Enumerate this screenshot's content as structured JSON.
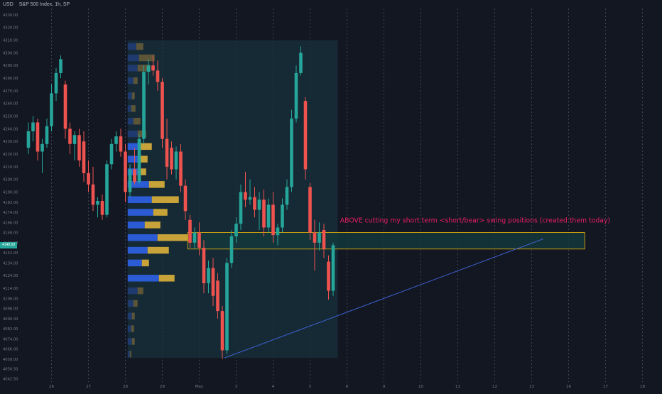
{
  "header": {
    "currency": "USD",
    "symbol": "S&P 500 Index, 1h, SP"
  },
  "colors": {
    "background": "#131722",
    "up": "#26a69a",
    "down": "#ef5350",
    "profile_up": "#2c5bd6",
    "profile_down": "#c7a33a",
    "profile_up_dim": "#1e3a6e",
    "profile_down_dim": "#5c5537",
    "axis_text": "#787b86",
    "grid": "#2a2e39",
    "session_line": "#4a4f60",
    "annotation": "#e91e63",
    "zone_border": "#f0b90b",
    "zone_fill": "#143a3d",
    "trendline": "#3d5fd0",
    "profile_box": "#17323b"
  },
  "chart_data": {
    "type": "candlestick",
    "symbol": "S&P 500 Index",
    "interval": "1h",
    "ylim": [
      4040,
      4335
    ],
    "y_ticks": [
      4042.5,
      4050.5,
      4058.0,
      4066.0,
      4074.0,
      4082.0,
      4090.0,
      4098.0,
      4106.0,
      4114.0,
      4124.0,
      4134.0,
      4142.0,
      4150.0,
      4158.0,
      4166.0,
      4174.0,
      4182.0,
      4190.0,
      4200.0,
      4210.0,
      4220.0,
      4230.0,
      4240.0,
      4250.0,
      4260.0,
      4270.0,
      4280.0,
      4290.0,
      4300.0,
      4310.0,
      4320.0,
      4330.0
    ],
    "y_tick_labels": [
      "4042.50",
      "4050.50",
      "4058.00",
      "4066.00",
      "4074.00",
      "4082.00",
      "4090.00",
      "4098.00",
      "4106.00",
      "4114.00",
      "4124.00",
      "4134.00",
      "4142.00",
      "4150.00",
      "4158.00",
      "4166.00",
      "4174.00",
      "4182.00",
      "4190.00",
      "4200.00",
      "4210.00",
      "4220.00",
      "4230.00",
      "4240.00",
      "4250.00",
      "4260.00",
      "4270.00",
      "4280.00",
      "4290.00",
      "4300.00",
      "4310.00",
      "4320.00",
      "4330.00"
    ],
    "x_ticks": [
      0,
      8,
      16,
      24,
      32,
      40,
      48,
      56,
      64,
      72,
      80,
      88,
      96,
      104,
      112,
      120,
      128,
      136,
      144
    ],
    "x_tick_labels": [
      "",
      "26",
      "27",
      "28",
      "29",
      "May",
      "3",
      "4",
      "5",
      "6",
      "9",
      "10",
      "11",
      "12",
      "13",
      "16",
      "17",
      "18",
      ""
    ],
    "session_lines": [
      8,
      16,
      24,
      32,
      40,
      48,
      56,
      64,
      72,
      80,
      88,
      96,
      104,
      112,
      120,
      128,
      136
    ],
    "current_price": 4148.0,
    "current_price_label": "4148.00",
    "candles": [
      {
        "i": 3,
        "o": 4225,
        "h": 4245,
        "l": 4220,
        "c": 4238
      },
      {
        "i": 4,
        "o": 4238,
        "h": 4250,
        "l": 4230,
        "c": 4245
      },
      {
        "i": 5,
        "o": 4245,
        "h": 4248,
        "l": 4215,
        "c": 4222
      },
      {
        "i": 6,
        "o": 4222,
        "h": 4232,
        "l": 4205,
        "c": 4228
      },
      {
        "i": 7,
        "o": 4228,
        "h": 4248,
        "l": 4225,
        "c": 4242
      },
      {
        "i": 8,
        "o": 4242,
        "h": 4275,
        "l": 4238,
        "c": 4268
      },
      {
        "i": 9,
        "o": 4268,
        "h": 4288,
        "l": 4262,
        "c": 4284
      },
      {
        "i": 10,
        "o": 4284,
        "h": 4298,
        "l": 4280,
        "c": 4295
      },
      {
        "i": 11,
        "o": 4275,
        "h": 4278,
        "l": 4232,
        "c": 4240
      },
      {
        "i": 12,
        "o": 4240,
        "h": 4245,
        "l": 4220,
        "c": 4228
      },
      {
        "i": 13,
        "o": 4228,
        "h": 4238,
        "l": 4215,
        "c": 4235
      },
      {
        "i": 14,
        "o": 4235,
        "h": 4240,
        "l": 4210,
        "c": 4215
      },
      {
        "i": 15,
        "o": 4230,
        "h": 4238,
        "l": 4198,
        "c": 4205
      },
      {
        "i": 16,
        "o": 4205,
        "h": 4215,
        "l": 4190,
        "c": 4196
      },
      {
        "i": 17,
        "o": 4196,
        "h": 4210,
        "l": 4175,
        "c": 4180
      },
      {
        "i": 18,
        "o": 4180,
        "h": 4186,
        "l": 4170,
        "c": 4183
      },
      {
        "i": 19,
        "o": 4183,
        "h": 4188,
        "l": 4168,
        "c": 4172
      },
      {
        "i": 20,
        "o": 4172,
        "h": 4215,
        "l": 4170,
        "c": 4212
      },
      {
        "i": 21,
        "o": 4212,
        "h": 4232,
        "l": 4208,
        "c": 4228
      },
      {
        "i": 22,
        "o": 4228,
        "h": 4238,
        "l": 4222,
        "c": 4234
      },
      {
        "i": 23,
        "o": 4234,
        "h": 4240,
        "l": 4218,
        "c": 4222
      },
      {
        "i": 24,
        "o": 4222,
        "h": 4228,
        "l": 4182,
        "c": 4190
      },
      {
        "i": 25,
        "o": 4190,
        "h": 4212,
        "l": 4186,
        "c": 4208
      },
      {
        "i": 26,
        "o": 4208,
        "h": 4225,
        "l": 4196,
        "c": 4198
      },
      {
        "i": 27,
        "o": 4198,
        "h": 4236,
        "l": 4196,
        "c": 4232
      },
      {
        "i": 28,
        "o": 4232,
        "h": 4290,
        "l": 4228,
        "c": 4285
      },
      {
        "i": 29,
        "o": 4285,
        "h": 4295,
        "l": 4275,
        "c": 4290
      },
      {
        "i": 30,
        "o": 4290,
        "h": 4298,
        "l": 4282,
        "c": 4286
      },
      {
        "i": 31,
        "o": 4286,
        "h": 4294,
        "l": 4270,
        "c": 4277
      },
      {
        "i": 32,
        "o": 4277,
        "h": 4280,
        "l": 4225,
        "c": 4232
      },
      {
        "i": 33,
        "o": 4232,
        "h": 4248,
        "l": 4200,
        "c": 4210
      },
      {
        "i": 34,
        "o": 4225,
        "h": 4230,
        "l": 4204,
        "c": 4208
      },
      {
        "i": 35,
        "o": 4208,
        "h": 4226,
        "l": 4200,
        "c": 4222
      },
      {
        "i": 36,
        "o": 4222,
        "h": 4228,
        "l": 4190,
        "c": 4195
      },
      {
        "i": 37,
        "o": 4195,
        "h": 4200,
        "l": 4168,
        "c": 4175
      },
      {
        "i": 38,
        "o": 4168,
        "h": 4172,
        "l": 4146,
        "c": 4150
      },
      {
        "i": 39,
        "o": 4150,
        "h": 4162,
        "l": 4145,
        "c": 4158
      },
      {
        "i": 40,
        "o": 4158,
        "h": 4166,
        "l": 4140,
        "c": 4146
      },
      {
        "i": 41,
        "o": 4146,
        "h": 4152,
        "l": 4110,
        "c": 4118
      },
      {
        "i": 42,
        "o": 4118,
        "h": 4136,
        "l": 4110,
        "c": 4130
      },
      {
        "i": 43,
        "o": 4130,
        "h": 4138,
        "l": 4100,
        "c": 4108
      },
      {
        "i": 44,
        "o": 4120,
        "h": 4126,
        "l": 4090,
        "c": 4096
      },
      {
        "i": 45,
        "o": 4096,
        "h": 4100,
        "l": 4058,
        "c": 4065
      },
      {
        "i": 46,
        "o": 4065,
        "h": 4138,
        "l": 4062,
        "c": 4134
      },
      {
        "i": 47,
        "o": 4134,
        "h": 4160,
        "l": 4130,
        "c": 4155
      },
      {
        "i": 48,
        "o": 4155,
        "h": 4170,
        "l": 4150,
        "c": 4165
      },
      {
        "i": 49,
        "o": 4165,
        "h": 4196,
        "l": 4160,
        "c": 4190
      },
      {
        "i": 50,
        "o": 4190,
        "h": 4206,
        "l": 4178,
        "c": 4184
      },
      {
        "i": 51,
        "o": 4184,
        "h": 4200,
        "l": 4180,
        "c": 4186
      },
      {
        "i": 52,
        "o": 4186,
        "h": 4194,
        "l": 4170,
        "c": 4176
      },
      {
        "i": 53,
        "o": 4176,
        "h": 4190,
        "l": 4160,
        "c": 4184
      },
      {
        "i": 54,
        "o": 4184,
        "h": 4192,
        "l": 4155,
        "c": 4162
      },
      {
        "i": 55,
        "o": 4162,
        "h": 4185,
        "l": 4158,
        "c": 4180
      },
      {
        "i": 56,
        "o": 4180,
        "h": 4190,
        "l": 4150,
        "c": 4156
      },
      {
        "i": 57,
        "o": 4156,
        "h": 4165,
        "l": 4148,
        "c": 4162
      },
      {
        "i": 58,
        "o": 4162,
        "h": 4185,
        "l": 4158,
        "c": 4180
      },
      {
        "i": 59,
        "o": 4180,
        "h": 4200,
        "l": 4176,
        "c": 4194
      },
      {
        "i": 60,
        "o": 4194,
        "h": 4255,
        "l": 4190,
        "c": 4248
      },
      {
        "i": 61,
        "o": 4248,
        "h": 4290,
        "l": 4245,
        "c": 4284
      },
      {
        "i": 62,
        "o": 4284,
        "h": 4305,
        "l": 4282,
        "c": 4300
      },
      {
        "i": 63,
        "o": 4262,
        "h": 4265,
        "l": 4200,
        "c": 4208
      },
      {
        "i": 64,
        "o": 4194,
        "h": 4197,
        "l": 4152,
        "c": 4158
      },
      {
        "i": 65,
        "o": 4158,
        "h": 4168,
        "l": 4128,
        "c": 4150
      },
      {
        "i": 66,
        "o": 4150,
        "h": 4166,
        "l": 4144,
        "c": 4158
      },
      {
        "i": 67,
        "o": 4160,
        "h": 4165,
        "l": 4138,
        "c": 4145
      },
      {
        "i": 68,
        "o": 4135,
        "h": 4140,
        "l": 4105,
        "c": 4112
      },
      {
        "i": 69,
        "o": 4112,
        "h": 4150,
        "l": 4108,
        "c": 4148
      }
    ],
    "volume_profile": [
      {
        "price": 4305,
        "up": 12,
        "down": 10,
        "dim": true
      },
      {
        "price": 4296,
        "up": 16,
        "down": 22,
        "dim": true
      },
      {
        "price": 4288,
        "up": 14,
        "down": 18,
        "dim": true
      },
      {
        "price": 4278,
        "up": 8,
        "down": 6,
        "dim": true
      },
      {
        "price": 4266,
        "up": 6,
        "down": 4,
        "dim": true
      },
      {
        "price": 4256,
        "up": 5,
        "down": 6,
        "dim": true
      },
      {
        "price": 4246,
        "up": 8,
        "down": 10,
        "dim": true
      },
      {
        "price": 4236,
        "up": 14,
        "down": 12,
        "dim": true
      },
      {
        "price": 4226,
        "up": 16,
        "down": 18,
        "dim": false
      },
      {
        "price": 4216,
        "up": 18,
        "down": 10,
        "dim": false
      },
      {
        "price": 4206,
        "up": 14,
        "down": 12,
        "dim": false
      },
      {
        "price": 4196,
        "up": 30,
        "down": 22,
        "dim": false
      },
      {
        "price": 4184,
        "up": 34,
        "down": 38,
        "dim": false
      },
      {
        "price": 4174,
        "up": 36,
        "down": 20,
        "dim": false
      },
      {
        "price": 4164,
        "up": 24,
        "down": 22,
        "dim": false
      },
      {
        "price": 4154,
        "up": 42,
        "down": 46,
        "dim": false
      },
      {
        "price": 4144,
        "up": 28,
        "down": 30,
        "dim": false
      },
      {
        "price": 4134,
        "up": 20,
        "down": 10,
        "dim": false
      },
      {
        "price": 4122,
        "up": 44,
        "down": 22,
        "dim": false
      },
      {
        "price": 4112,
        "up": 14,
        "down": 8,
        "dim": true
      },
      {
        "price": 4102,
        "up": 8,
        "down": 6,
        "dim": true
      },
      {
        "price": 4092,
        "up": 6,
        "down": 4,
        "dim": true
      },
      {
        "price": 4082,
        "up": 5,
        "down": 4,
        "dim": true
      },
      {
        "price": 4072,
        "up": 6,
        "down": 4,
        "dim": true
      },
      {
        "price": 4062,
        "up": 3,
        "down": 2,
        "dim": true
      }
    ],
    "profile_range": {
      "i_start": 24.5,
      "i_end": 70,
      "p_low": 4059,
      "p_high": 4310
    },
    "zone": {
      "i_start": 37.5,
      "i_end": 123.5,
      "p_low": 4145,
      "p_high": 4158
    },
    "trendline": {
      "i1": 45.5,
      "p1": 4059,
      "i2": 114.5,
      "p2": 4153
    },
    "annotation": {
      "text": "ABOVE cutting my short term <short/bear> swing positions  (created them today)",
      "i": 70.5,
      "p": 4166
    }
  }
}
